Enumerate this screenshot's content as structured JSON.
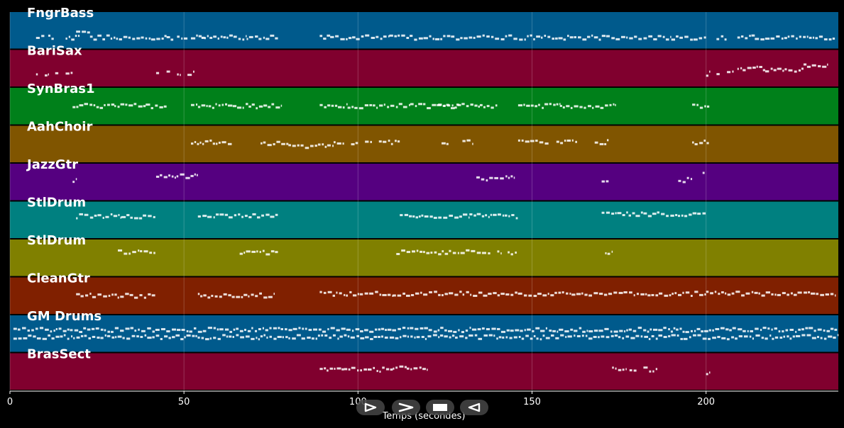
{
  "chart_data": {
    "type": "piano-roll",
    "title": "",
    "xlabel": "Temps (secondes)",
    "ylabel": "",
    "xlim": [
      0,
      238
    ],
    "xticks": [
      0,
      50,
      100,
      150,
      200
    ],
    "grid": true,
    "tracks": [
      {
        "name": "FngrBass",
        "color": "#005a8c",
        "segments": [
          [
            7.5,
            9,
            0.7
          ],
          [
            9,
            10,
            0.7
          ],
          [
            11,
            13,
            0.7
          ],
          [
            16,
            20,
            0.7
          ],
          [
            19,
            23,
            0.55
          ],
          [
            23,
            45,
            0.7
          ],
          [
            45,
            47,
            0.7
          ],
          [
            48,
            51,
            0.7
          ],
          [
            52,
            56,
            0.7
          ],
          [
            55,
            68,
            0.7
          ],
          [
            68,
            77,
            0.7
          ],
          [
            89,
            92,
            0.7
          ],
          [
            92,
            109,
            0.7
          ],
          [
            109,
            190,
            0.7
          ],
          [
            190,
            200,
            0.7
          ],
          [
            203,
            206,
            0.7
          ],
          [
            209,
            214,
            0.7
          ],
          [
            214,
            237,
            0.7
          ]
        ]
      },
      {
        "name": "BariSax",
        "color": "#80002e",
        "segments": [
          [
            7.5,
            8,
            0.65
          ],
          [
            10,
            11,
            0.65
          ],
          [
            13,
            14,
            0.65
          ],
          [
            16,
            18,
            0.65
          ],
          [
            42,
            43,
            0.65
          ],
          [
            45,
            46,
            0.65
          ],
          [
            48,
            49,
            0.65
          ],
          [
            51,
            53,
            0.65
          ],
          [
            200,
            201,
            0.65
          ],
          [
            203,
            204,
            0.65
          ],
          [
            206,
            208,
            0.65
          ],
          [
            209,
            217,
            0.5
          ],
          [
            217,
            228,
            0.55
          ],
          [
            228,
            235,
            0.45
          ]
        ]
      },
      {
        "name": "SynBras1",
        "color": "#00801a",
        "segments": [
          [
            18,
            30,
            0.5
          ],
          [
            30,
            39,
            0.5
          ],
          [
            39,
            45,
            0.5
          ],
          [
            52,
            64,
            0.5
          ],
          [
            64,
            78,
            0.5
          ],
          [
            89,
            97,
            0.5
          ],
          [
            97,
            115,
            0.5
          ],
          [
            115,
            129,
            0.5
          ],
          [
            123,
            135,
            0.5
          ],
          [
            135,
            140,
            0.5
          ],
          [
            146,
            158,
            0.5
          ],
          [
            158,
            174,
            0.5
          ],
          [
            196,
            201,
            0.5
          ]
        ]
      },
      {
        "name": "AahChoir",
        "color": "#805500",
        "segments": [
          [
            52,
            64,
            0.45
          ],
          [
            72,
            80,
            0.5
          ],
          [
            80,
            93,
            0.55
          ],
          [
            93,
            96,
            0.45
          ],
          [
            98,
            100,
            0.45
          ],
          [
            102,
            104,
            0.45
          ],
          [
            106,
            112,
            0.45
          ],
          [
            124,
            126,
            0.45
          ],
          [
            130,
            133,
            0.45
          ],
          [
            146,
            155,
            0.45
          ],
          [
            157,
            163,
            0.45
          ],
          [
            168,
            172,
            0.45
          ],
          [
            196,
            201,
            0.45
          ]
        ]
      },
      {
        "name": "JazzGtr",
        "color": "#550080",
        "segments": [
          [
            18,
            19,
            0.45
          ],
          [
            42,
            54,
            0.35
          ],
          [
            134,
            145,
            0.4
          ],
          [
            170,
            172,
            0.45
          ],
          [
            192,
            196,
            0.45
          ],
          [
            199,
            200,
            0.3
          ]
        ]
      },
      {
        "name": "StlDrum",
        "color": "#008080",
        "segments": [
          [
            19,
            32,
            0.4
          ],
          [
            32,
            42,
            0.4
          ],
          [
            54,
            77,
            0.4
          ],
          [
            112,
            132,
            0.4
          ],
          [
            132,
            146,
            0.4
          ],
          [
            170,
            182,
            0.35
          ],
          [
            182,
            200,
            0.35
          ]
        ]
      },
      {
        "name": "StlDrum",
        "color": "#808000",
        "segments": [
          [
            31,
            42,
            0.35
          ],
          [
            66,
            77,
            0.35
          ],
          [
            111,
            138,
            0.35
          ],
          [
            140,
            141,
            0.35
          ],
          [
            143,
            146,
            0.35
          ],
          [
            171,
            173,
            0.35
          ]
        ]
      },
      {
        "name": "CleanGtr",
        "color": "#802000",
        "segments": [
          [
            19,
            42,
            0.5
          ],
          [
            54,
            76,
            0.5
          ],
          [
            89,
            110,
            0.45
          ],
          [
            110,
            200,
            0.45
          ],
          [
            200,
            237,
            0.45
          ]
        ]
      },
      {
        "name": "GM Drums",
        "color": "#005a8c",
        "segments": [
          [
            1,
            238,
            0.4
          ],
          [
            1,
            238,
            0.6
          ]
        ]
      },
      {
        "name": "BrasSect",
        "color": "#80002e",
        "segments": [
          [
            89,
            96,
            0.45
          ],
          [
            96,
            110,
            0.45
          ],
          [
            110,
            114,
            0.4
          ],
          [
            114,
            120,
            0.45
          ],
          [
            173,
            177,
            0.45
          ],
          [
            178,
            180,
            0.45
          ],
          [
            182,
            186,
            0.45
          ],
          [
            200,
            201,
            0.55
          ]
        ]
      }
    ]
  },
  "player": {
    "play_icon": "play-icon",
    "forward_icon": "fast-forward-icon",
    "stop_icon": "stop-icon",
    "rewind_icon": "rewind-icon"
  }
}
